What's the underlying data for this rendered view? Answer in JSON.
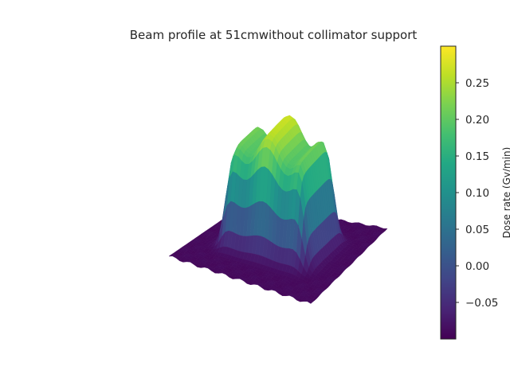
{
  "chart_data": {
    "type": "surface3d",
    "title": "Beam profile at 51cmwithout collimator support",
    "colormap": "viridis",
    "zlim": [
      -0.1,
      0.3
    ],
    "colorbar": {
      "range": [
        -0.1,
        0.3
      ],
      "ticks": [
        0.25,
        0.2,
        0.15,
        0.1,
        0.05,
        0.0,
        -0.05
      ],
      "tick_labels": [
        "0.25",
        "0.20",
        "0.15",
        "0.10",
        "0.05",
        "0.00",
        "−0.05"
      ],
      "label": "Dose rate (Gy/min)"
    },
    "surface": {
      "description_grid": "approx 40 x 40 samples",
      "base_level": -0.09,
      "plateau_peak": 0.29,
      "plateau_valley": 0.1
    }
  }
}
